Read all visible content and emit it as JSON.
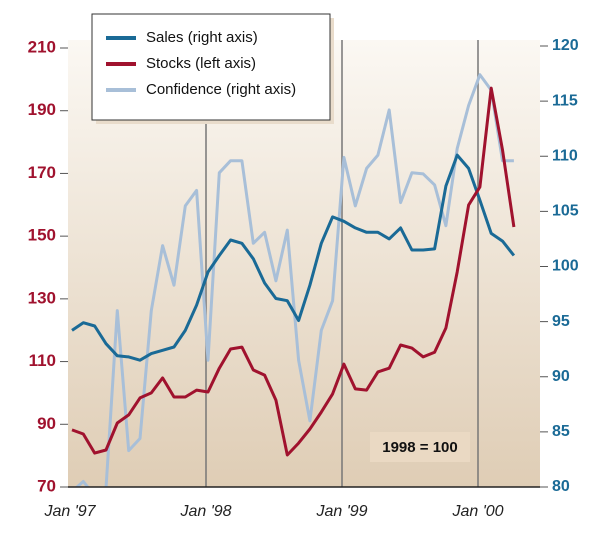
{
  "chart_data": {
    "type": "line",
    "annotation": "1998 = 100",
    "categories": [
      "Jan '97",
      null,
      null,
      null,
      null,
      null,
      null,
      null,
      null,
      null,
      null,
      null,
      "Jan '98",
      null,
      null,
      null,
      null,
      null,
      null,
      null,
      null,
      null,
      null,
      null,
      "Jan '99",
      null,
      null,
      null,
      null,
      null,
      null,
      null,
      null,
      null,
      null,
      null,
      "Jan '00",
      null,
      null,
      null
    ],
    "ylim": [
      70,
      210
    ],
    "yticks": [
      70,
      90,
      110,
      130,
      150,
      170,
      190,
      210
    ],
    "y2lim": [
      80,
      120
    ],
    "y2ticks": [
      80,
      85,
      90,
      95,
      100,
      105,
      110,
      115,
      120
    ],
    "series": [
      {
        "name": "Sales (right axis)",
        "color": "#1a6a96",
        "axis": "y2",
        "values": [
          94.2,
          94.9,
          94.6,
          93.0,
          91.9,
          91.8,
          91.5,
          92.1,
          92.4,
          92.7,
          94.2,
          96.5,
          99.5,
          101.0,
          102.4,
          102.1,
          100.7,
          98.5,
          97.1,
          96.9,
          95.1,
          98.3,
          102.1,
          104.5,
          104.1,
          103.5,
          103.1,
          103.1,
          102.5,
          103.5,
          101.5,
          101.5,
          101.6,
          107.3,
          110.1,
          108.9,
          106.0,
          103.0,
          102.3,
          101.0
        ]
      },
      {
        "name": "Stocks (left axis)",
        "color": "#a0122e",
        "values": [
          88.2,
          86.9,
          80.8,
          81.8,
          90.4,
          93.0,
          98.4,
          100.0,
          104.8,
          98.7,
          98.7,
          100.9,
          100.3,
          107.9,
          114.0,
          114.6,
          107.3,
          105.7,
          97.7,
          80.2,
          84.0,
          88.5,
          93.9,
          99.7,
          109.2,
          101.3,
          100.9,
          106.7,
          107.9,
          115.3,
          114.3,
          111.5,
          113.0,
          120.7,
          138.6,
          159.9,
          165.7,
          197.2,
          177.5,
          152.9
        ]
      },
      {
        "name": "Confidence (right axis)",
        "color": "#a8bfd8",
        "axis": "y2",
        "values": [
          79.6,
          80.5,
          79.2,
          79.9,
          96.0,
          83.3,
          84.4,
          96.0,
          101.9,
          98.3,
          105.5,
          106.9,
          91.5,
          108.5,
          109.6,
          109.6,
          102.1,
          103.1,
          98.7,
          103.3,
          91.5,
          86.0,
          94.2,
          96.9,
          109.9,
          105.5,
          108.9,
          110.1,
          114.2,
          105.8,
          108.5,
          108.4,
          107.4,
          103.7,
          110.7,
          114.6,
          117.4,
          116.0,
          109.6,
          109.6
        ]
      }
    ]
  }
}
